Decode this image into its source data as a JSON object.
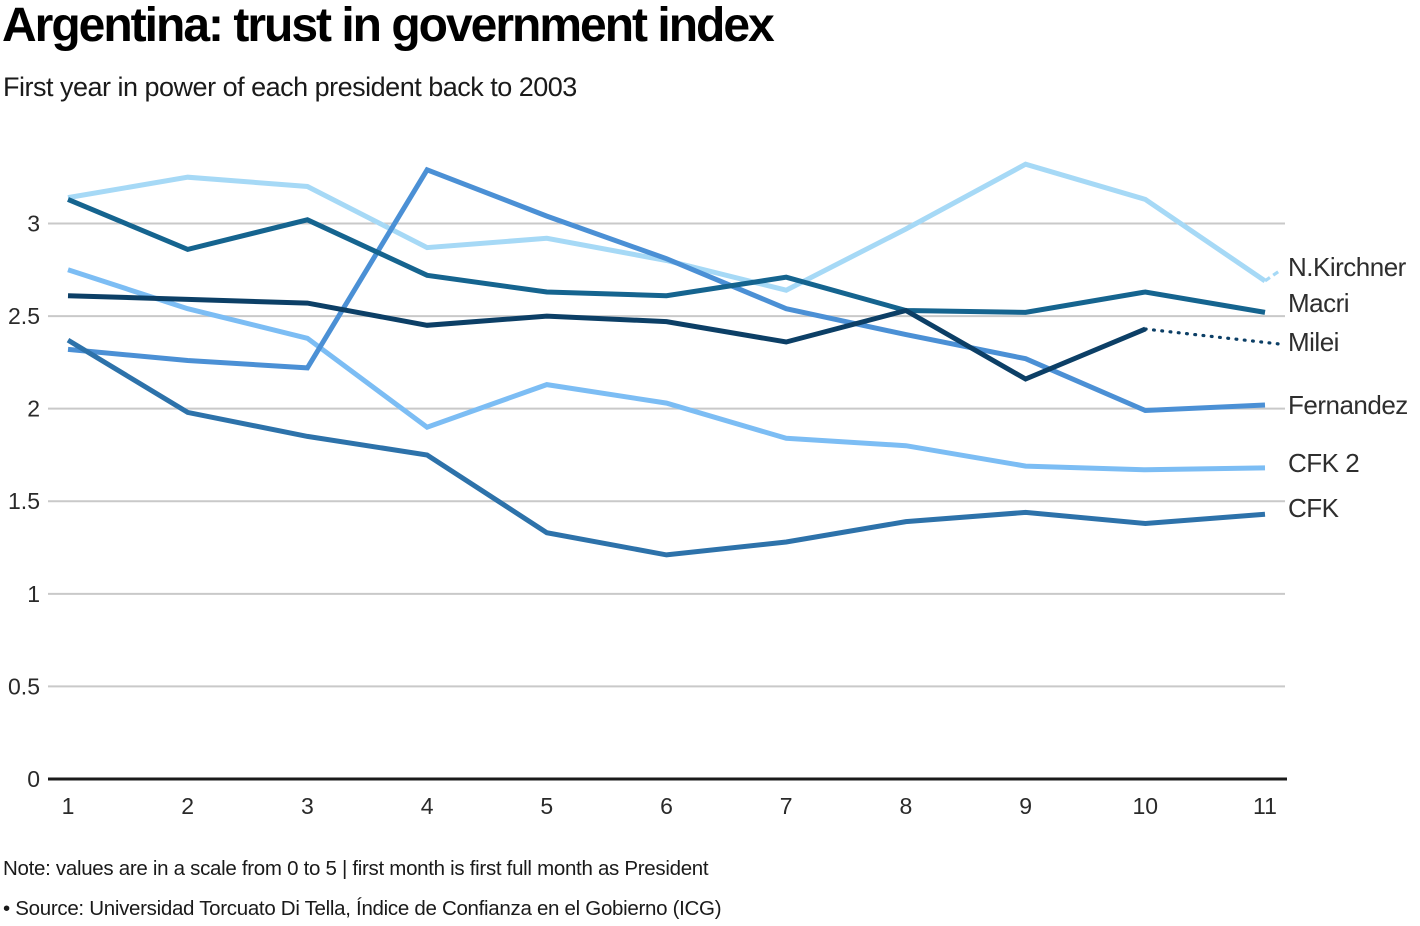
{
  "header": {
    "title": "Argentina: trust in government index",
    "subtitle": "First year in power of each president back to 2003"
  },
  "chart_data": {
    "type": "line",
    "title": "Argentina: trust in government index",
    "subtitle": "First year in power of each president back to 2003",
    "xlabel": "",
    "ylabel": "",
    "x": [
      1,
      2,
      3,
      4,
      5,
      6,
      7,
      8,
      9,
      10,
      11
    ],
    "xticks": [
      "1",
      "2",
      "3",
      "4",
      "5",
      "6",
      "7",
      "8",
      "9",
      "10",
      "11"
    ],
    "yticks": [
      0,
      0.5,
      1,
      1.5,
      2,
      2.5,
      3
    ],
    "ylim": [
      0,
      3.4
    ],
    "grid": "horizontal",
    "legend_position": "right-end-labels",
    "series": [
      {
        "name": "N.Kirchner",
        "color": "#a6d9f6",
        "values": [
          3.14,
          3.25,
          3.2,
          2.87,
          2.92,
          2.8,
          2.64,
          2.97,
          3.32,
          3.13,
          2.69
        ],
        "connector": {
          "style": "dashed",
          "end_value": 2.75
        },
        "label_value": 2.765
      },
      {
        "name": "CFK 2",
        "color": "#7cbdf4",
        "values": [
          2.75,
          2.54,
          2.38,
          1.9,
          2.13,
          2.03,
          1.84,
          1.8,
          1.69,
          1.67,
          1.68
        ],
        "connector": null,
        "label_value": 1.707
      },
      {
        "name": "Fernandez",
        "color": "#4b90d5",
        "values": [
          2.32,
          2.26,
          2.22,
          3.29,
          3.04,
          2.81,
          2.54,
          2.4,
          2.27,
          1.99,
          2.02
        ],
        "connector": null,
        "label_value": 2.02
      },
      {
        "name": "CFK",
        "color": "#2d72aa",
        "values": [
          2.37,
          1.98,
          1.85,
          1.75,
          1.33,
          1.21,
          1.28,
          1.39,
          1.44,
          1.38,
          1.43
        ],
        "connector": null,
        "label_value": 1.464
      },
      {
        "name": "Macri",
        "color": "#15648f",
        "values": [
          3.13,
          2.86,
          3.02,
          2.72,
          2.63,
          2.61,
          2.71,
          2.53,
          2.52,
          2.63,
          2.52
        ],
        "connector": null,
        "label_value": 2.571
      },
      {
        "name": "Milei",
        "color": "#0c3f66",
        "values": [
          2.61,
          2.59,
          2.57,
          2.45,
          2.5,
          2.47,
          2.36,
          2.53,
          2.16,
          2.43,
          null
        ],
        "connector": {
          "style": "dotted",
          "end_value": 2.35
        },
        "label_value": 2.36
      }
    ]
  },
  "notes": {
    "line1": "Note: values are in a scale from 0 to 5 | first month is first full month as President",
    "line2": "• Source: Universidad Torcuato Di Tella, Índice de Confianza en el Gobierno (ICG)"
  }
}
